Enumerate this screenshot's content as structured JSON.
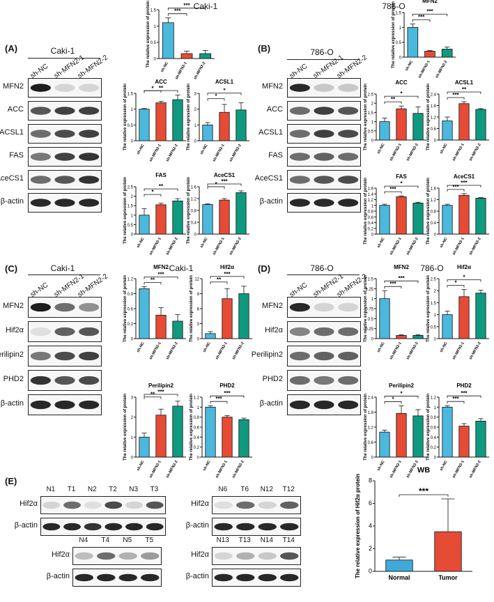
{
  "figure": {
    "colors": {
      "nc": "#4bb8de",
      "kd1": "#e64b35",
      "kd2": "#0f9a7f",
      "normal": "#3fa9d9",
      "tumor": "#e64b35"
    },
    "panels": [
      {
        "id": "A",
        "label": "(A)",
        "cell_line": "Caki-1",
        "chart_title": "Caki-1",
        "conditions": [
          "sh-NC",
          "sh-MFN2-1",
          "sh-MFN2-2"
        ],
        "blots": [
          "MFN2",
          "ACC",
          "ACSL1",
          "FAS",
          "AceCS1",
          "β-actin"
        ]
      },
      {
        "id": "B",
        "label": "(B)",
        "cell_line": "786-O",
        "chart_title": "786-O",
        "conditions": [
          "sh-NC",
          "sh-MFN2-1",
          "sh-MFN2-2"
        ],
        "blots": [
          "MFN2",
          "ACC",
          "ACSL1",
          "FAS",
          "AceCS1",
          "β-actin"
        ]
      },
      {
        "id": "C",
        "label": "(C)",
        "cell_line": "Caki-1",
        "chart_title": "Caki-1",
        "conditions": [
          "sh-NC",
          "sh-MFN2-1",
          "sh-MFN2-2"
        ],
        "blots": [
          "MFN2",
          "Hif2α",
          "Perilipin2",
          "PHD2",
          "β-actin"
        ]
      },
      {
        "id": "D",
        "label": "(D)",
        "cell_line": "786-O",
        "chart_title": "786-O",
        "conditions": [
          "sh-NC",
          "sh-MFN2-1",
          "sh-MFN2-2"
        ],
        "blots": [
          "MFN2",
          "Hif2α",
          "Perilipin2",
          "PHD2",
          "β-actin"
        ]
      },
      {
        "id": "E",
        "label": "(E)"
      }
    ],
    "tissue_blots": [
      {
        "lanes": [
          "N1",
          "T1",
          "N2",
          "T2",
          "N3",
          "T3"
        ],
        "rows": [
          "Hif2α",
          "β-actin"
        ]
      },
      {
        "lanes": [
          "N6",
          "T6",
          "N12",
          "T12"
        ],
        "rows": [
          "Hif2α",
          "β-actin"
        ]
      },
      {
        "lanes": [
          "N4",
          "T4",
          "N5",
          "T5"
        ],
        "rows": [
          "Hif2α",
          "β-actin"
        ]
      },
      {
        "lanes": [
          "N13",
          "T13",
          "N14",
          "T14"
        ],
        "rows": [
          "Hif2α",
          "β-actin"
        ]
      }
    ],
    "ylabel": "The relative expression of protein",
    "xcats": [
      "sh-NC",
      "sh-MFN2-1",
      "sh-MFN2-2"
    ]
  },
  "chart_data": [
    {
      "type": "bar",
      "panel": "A",
      "title": "MFN2",
      "categories": [
        "sh-NC",
        "sh-MFN2-1",
        "sh-MFN2-2"
      ],
      "values": [
        1.1,
        0.15,
        0.15
      ],
      "errors": [
        0.15,
        0.08,
        0.1
      ],
      "ylim": [
        0,
        1.5
      ],
      "ticks": [
        0,
        0.5,
        1.0,
        1.5
      ],
      "sig": [
        "***",
        "***"
      ],
      "ylabel": "The relative expression of protein"
    },
    {
      "type": "bar",
      "panel": "A",
      "title": "ACC",
      "categories": [
        "sh-NC",
        "sh-MFN2-1",
        "sh-MFN2-2"
      ],
      "values": [
        1.0,
        1.2,
        1.3
      ],
      "errors": [
        0.02,
        0.05,
        0.15
      ],
      "ylim": [
        0,
        1.5
      ],
      "ticks": [
        0,
        0.5,
        1.0,
        1.5
      ],
      "sig": [
        "*",
        "**"
      ],
      "ylabel": "The relative expression of protein"
    },
    {
      "type": "bar",
      "panel": "A",
      "title": "ACSL1",
      "categories": [
        "sh-NC",
        "sh-MFN2-1",
        "sh-MFN2-2"
      ],
      "values": [
        1.0,
        1.8,
        1.95
      ],
      "errors": [
        0.15,
        0.5,
        0.45
      ],
      "ylim": [
        0,
        3
      ],
      "ticks": [
        0,
        1,
        2,
        3
      ],
      "sig": [
        "*",
        "*"
      ],
      "ylabel": "The relative expression of protein"
    },
    {
      "type": "bar",
      "panel": "A",
      "title": "FAS",
      "categories": [
        "sh-NC",
        "sh-MFN2-1",
        "sh-MFN2-2"
      ],
      "values": [
        1.0,
        1.55,
        1.75
      ],
      "errors": [
        0.35,
        0.08,
        0.12
      ],
      "ylim": [
        0,
        2.5
      ],
      "ticks": [
        0,
        0.5,
        1.0,
        1.5,
        2.0,
        2.5
      ],
      "sig": [
        "*",
        "**"
      ],
      "ylabel": "The relative expression of protein"
    },
    {
      "type": "bar",
      "panel": "A",
      "title": "AceCS1",
      "categories": [
        "sh-NC",
        "sh-MFN2-1",
        "sh-MFN2-2"
      ],
      "values": [
        1.0,
        1.15,
        1.4
      ],
      "errors": [
        0.02,
        0.05,
        0.06
      ],
      "ylim": [
        0,
        1.6
      ],
      "ticks": [
        0,
        0.4,
        0.8,
        1.2,
        1.6
      ],
      "sig": [
        "*",
        "***"
      ],
      "ylabel": "The relative expression of protein"
    },
    {
      "type": "bar",
      "panel": "B",
      "title": "MFN2",
      "categories": [
        "sh-NC",
        "sh-MFN2-1",
        "sh-MFN2-2"
      ],
      "values": [
        1.0,
        0.2,
        0.27
      ],
      "errors": [
        0.12,
        0.02,
        0.07
      ],
      "ylim": [
        0,
        1.5
      ],
      "ticks": [
        0,
        0.5,
        1.0,
        1.5
      ],
      "sig": [
        "***",
        "***"
      ],
      "ylabel": "The relative expression of protein"
    },
    {
      "type": "bar",
      "panel": "B",
      "title": "ACC",
      "categories": [
        "sh-NC",
        "sh-MFN2-1",
        "sh-MFN2-2"
      ],
      "values": [
        1.0,
        1.7,
        1.45
      ],
      "errors": [
        0.2,
        0.15,
        0.35
      ],
      "ylim": [
        0,
        2.5
      ],
      "ticks": [
        0,
        0.5,
        1.0,
        1.5,
        2.0,
        2.5
      ],
      "sig": [
        "**",
        "*"
      ],
      "ylabel": "The relative expression of protein"
    },
    {
      "type": "bar",
      "panel": "B",
      "title": "ACSL1",
      "categories": [
        "sh-NC",
        "sh-MFN2-1",
        "sh-MFN2-2"
      ],
      "values": [
        1.0,
        1.9,
        1.6
      ],
      "errors": [
        0.2,
        0.1,
        0.04
      ],
      "ylim": [
        0,
        2.4
      ],
      "ticks": [
        0,
        0.6,
        1.2,
        1.8,
        2.4
      ],
      "sig": [
        "***",
        "**"
      ],
      "ylabel": "The relative expression of protein"
    },
    {
      "type": "bar",
      "panel": "B",
      "title": "FAS",
      "categories": [
        "sh-NC",
        "sh-MFN2-1",
        "sh-MFN2-2"
      ],
      "values": [
        1.0,
        1.3,
        1.08
      ],
      "errors": [
        0.04,
        0.03,
        0.03
      ],
      "ylim": [
        0,
        1.6
      ],
      "ticks": [
        0,
        0.2,
        0.4,
        0.6,
        0.8,
        1.0,
        1.2,
        1.4,
        1.6
      ],
      "sig": [
        "***",
        "*"
      ],
      "ylabel": "The relative expression of protein"
    },
    {
      "type": "bar",
      "panel": "B",
      "title": "AceCS1",
      "categories": [
        "sh-NC",
        "sh-MFN2-1",
        "sh-MFN2-2"
      ],
      "values": [
        1.0,
        1.35,
        1.25
      ],
      "errors": [
        0.04,
        0.06,
        0.02
      ],
      "ylim": [
        0,
        1.6
      ],
      "ticks": [
        0,
        0.4,
        0.8,
        1.2,
        1.6
      ],
      "sig": [
        "***",
        "***"
      ],
      "ylabel": "The relative expression of protein"
    },
    {
      "type": "bar",
      "panel": "C",
      "title": "MFN2",
      "categories": [
        "sh-NC",
        "sh-MFN2-1",
        "sh-MFN2-2"
      ],
      "values": [
        1.0,
        0.47,
        0.35
      ],
      "errors": [
        0.04,
        0.15,
        0.13
      ],
      "ylim": [
        0,
        1.2
      ],
      "ticks": [
        0,
        0.3,
        0.6,
        0.9,
        1.2
      ],
      "sig": [
        "**",
        "***"
      ],
      "ylabel": "The relative expression of protein"
    },
    {
      "type": "bar",
      "panel": "C",
      "title": "Hif2α",
      "categories": [
        "sh-NC",
        "sh-MFN2-1",
        "sh-MFN2-2"
      ],
      "values": [
        1.0,
        8.0,
        9.0
      ],
      "errors": [
        0.4,
        2.0,
        1.5
      ],
      "ylim": [
        0,
        12
      ],
      "ticks": [
        0,
        3,
        6,
        9,
        12
      ],
      "sig": [
        "**",
        "***"
      ],
      "ylabel": "The relative expression of protein"
    },
    {
      "type": "bar",
      "panel": "C",
      "title": "Perilipin2",
      "categories": [
        "sh-NC",
        "sh-MFN2-1",
        "sh-MFN2-2"
      ],
      "values": [
        1.0,
        2.1,
        2.55
      ],
      "errors": [
        0.2,
        0.3,
        0.25
      ],
      "ylim": [
        0,
        3
      ],
      "ticks": [
        0,
        1,
        2,
        3
      ],
      "sig": [
        "**",
        "***"
      ],
      "ylabel": "The relative expression of protein"
    },
    {
      "type": "bar",
      "panel": "C",
      "title": "PHD2",
      "categories": [
        "sh-NC",
        "sh-MFN2-1",
        "sh-MFN2-2"
      ],
      "values": [
        1.0,
        0.8,
        0.75
      ],
      "errors": [
        0.03,
        0.03,
        0.03
      ],
      "ylim": [
        0,
        1.2
      ],
      "ticks": [
        0,
        0.2,
        0.4,
        0.6,
        0.8,
        1.0,
        1.2
      ],
      "sig": [
        "***",
        "***"
      ],
      "ylabel": "The relative expression of protein"
    },
    {
      "type": "bar",
      "panel": "D",
      "title": "MFN2",
      "categories": [
        "sh-NC",
        "sh-MFN2-1",
        "sh-MFN2-2"
      ],
      "values": [
        1.0,
        0.08,
        0.08
      ],
      "errors": [
        0.2,
        0.02,
        0.02
      ],
      "ylim": [
        0,
        1.5
      ],
      "ticks": [
        0,
        0.25,
        0.5,
        0.75,
        1.0,
        1.25,
        1.5
      ],
      "sig": [
        "***",
        "***"
      ],
      "ylabel": "The relative expression of protein"
    },
    {
      "type": "bar",
      "panel": "D",
      "title": "Hif2α",
      "categories": [
        "sh-NC",
        "sh-MFN2-1",
        "sh-MFN2-2"
      ],
      "values": [
        1.0,
        1.75,
        1.9
      ],
      "errors": [
        0.15,
        0.3,
        0.12
      ],
      "ylim": [
        0,
        2.5
      ],
      "ticks": [
        0,
        0.5,
        1.0,
        1.5,
        2.0,
        2.5
      ],
      "sig": [
        "*",
        "*"
      ],
      "ylabel": "The relative expression of protein"
    },
    {
      "type": "bar",
      "panel": "D",
      "title": "Perilipin2",
      "categories": [
        "sh-NC",
        "sh-MFN2-1",
        "sh-MFN2-2"
      ],
      "values": [
        1.0,
        1.75,
        1.65
      ],
      "errors": [
        0.08,
        0.3,
        0.25
      ],
      "ylim": [
        0,
        2.4
      ],
      "ticks": [
        0,
        0.6,
        1.2,
        1.8,
        2.4
      ],
      "sig": [
        "*",
        "*"
      ],
      "ylabel": "The relative expression of protein"
    },
    {
      "type": "bar",
      "panel": "D",
      "title": "PHD2",
      "categories": [
        "sh-NC",
        "sh-MFN2-1",
        "sh-MFN2-2"
      ],
      "values": [
        1.0,
        0.62,
        0.72
      ],
      "errors": [
        0.03,
        0.05,
        0.05
      ],
      "ylim": [
        0,
        1.2
      ],
      "ticks": [
        0,
        0.2,
        0.4,
        0.6,
        0.8,
        1.0,
        1.2
      ],
      "sig": [
        "***",
        "***"
      ],
      "ylabel": "The relative expression of protein"
    },
    {
      "type": "bar",
      "panel": "E",
      "title": "WB",
      "categories": [
        "Normal",
        "Tumor"
      ],
      "values": [
        1.0,
        3.5
      ],
      "errors": [
        0.25,
        2.9
      ],
      "ylim": [
        0,
        8
      ],
      "ticks": [
        0,
        2,
        4,
        6,
        8
      ],
      "sig": [
        "***"
      ],
      "ylabel": "The relative expression of Hif2α protein"
    }
  ]
}
